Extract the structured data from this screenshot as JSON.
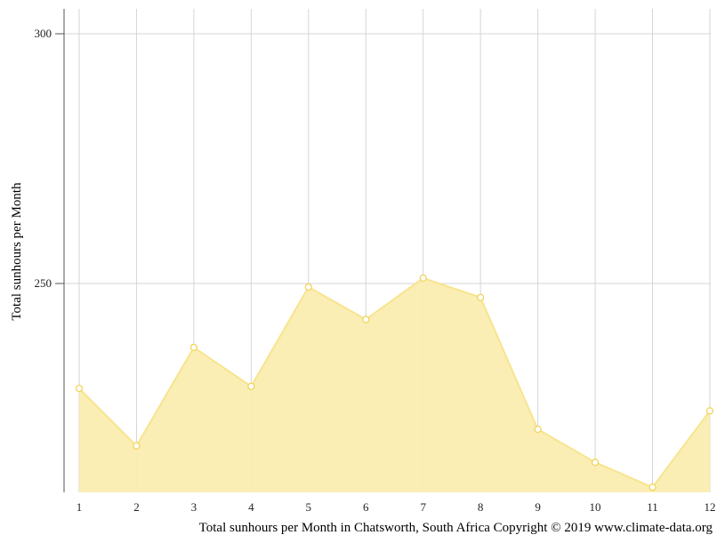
{
  "chart_data": {
    "type": "area",
    "x": [
      1,
      2,
      3,
      4,
      5,
      6,
      7,
      8,
      9,
      10,
      11,
      12
    ],
    "series": [
      {
        "values": [
          229,
          217.5,
          237.2,
          229.4,
          249.3,
          242.8,
          251.1,
          247.2,
          220.8,
          214.2,
          209.2,
          224.5
        ]
      }
    ],
    "ylabel": "Total sunhours per Month",
    "xlabel": "Total sunhours per Month in Chatsworth, South Africa Copyright © 2019 www.climate-data.org",
    "y_ticks": [
      250,
      300
    ],
    "ylim": [
      209,
      305
    ],
    "grid": true,
    "colors": {
      "fill": "#faedb0",
      "stroke": "#f8e48f",
      "marker": "#f2d45b",
      "grid": "#d6d6d6",
      "axis": "#555555"
    }
  }
}
